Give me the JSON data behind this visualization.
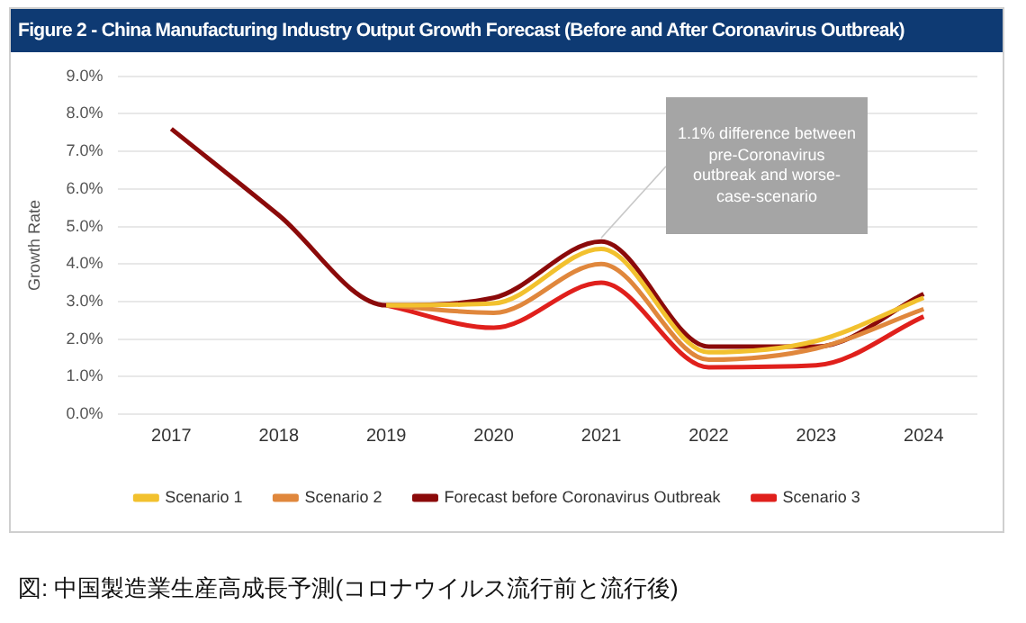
{
  "chart_data": {
    "type": "line",
    "title": "Figure 2 - China Manufacturing Industry Output Growth Forecast (Before and After Coronavirus Outbreak)",
    "ylabel": "Growth Rate",
    "categories": [
      "2017",
      "2018",
      "2019",
      "2020",
      "2021",
      "2022",
      "2023",
      "2024"
    ],
    "series": [
      {
        "name": "Scenario 1",
        "color": "#f2c12e",
        "values": [
          null,
          null,
          2.9,
          2.95,
          4.4,
          1.65,
          1.95,
          3.1
        ]
      },
      {
        "name": "Scenario 2",
        "color": "#e0873c",
        "values": [
          null,
          null,
          2.9,
          2.7,
          4.0,
          1.45,
          1.75,
          2.8
        ]
      },
      {
        "name": "Forecast before Coronavirus Outbreak",
        "color": "#8b0a0a",
        "values": [
          7.6,
          5.3,
          2.9,
          3.1,
          4.6,
          1.8,
          1.8,
          3.2
        ]
      },
      {
        "name": "Scenario 3",
        "color": "#e0201c",
        "values": [
          null,
          null,
          2.9,
          2.3,
          3.5,
          1.25,
          1.3,
          2.6
        ]
      }
    ],
    "ylim": [
      0,
      9
    ],
    "yticks": [
      {
        "value": 0,
        "label": "0.0%"
      },
      {
        "value": 1,
        "label": "1.0%"
      },
      {
        "value": 2,
        "label": "2.0%"
      },
      {
        "value": 3,
        "label": "3.0%"
      },
      {
        "value": 4,
        "label": "4.0%"
      },
      {
        "value": 5,
        "label": "5.0%"
      },
      {
        "value": 6,
        "label": "6.0%"
      },
      {
        "value": 7,
        "label": "7.0%"
      },
      {
        "value": 8,
        "label": "8.0%"
      },
      {
        "value": 9,
        "label": "9.0%"
      }
    ],
    "grid": "y",
    "legend": "bottom",
    "marker": "none",
    "line_style": "solid",
    "annotations": [
      {
        "text": "1.1% difference between pre-Coronavirus outbreak and worse-case-scenario",
        "x": "2021",
        "y": 4.6
      },
      "図: 中国製造業生産高成長予測(コロナウイルス流行前と流行後)"
    ]
  }
}
